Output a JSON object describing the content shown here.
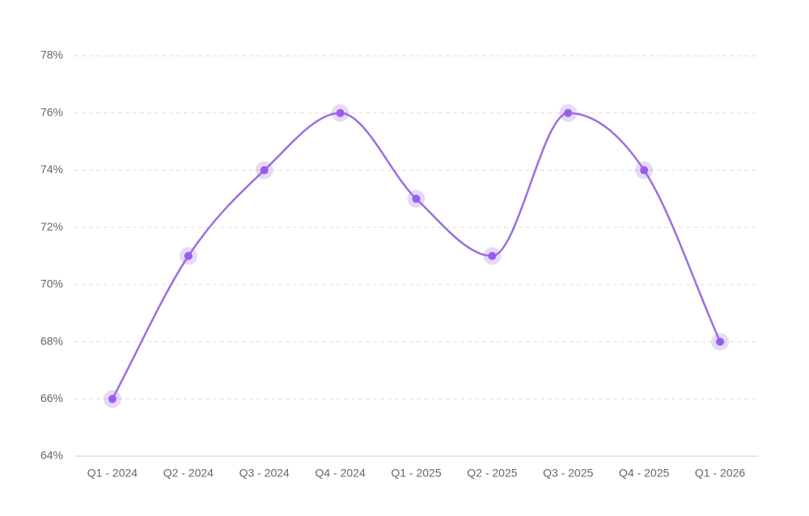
{
  "chart_data": {
    "type": "line",
    "categories": [
      "Q1 - 2024",
      "Q2 - 2024",
      "Q3 - 2024",
      "Q4 - 2024",
      "Q1 - 2025",
      "Q2 - 2025",
      "Q3 - 2025",
      "Q4 - 2025",
      "Q1 - 2026"
    ],
    "values": [
      66,
      71,
      74,
      76,
      73,
      71,
      76,
      74,
      68
    ],
    "color": "#9b6fdc",
    "ylim": [
      64,
      78
    ],
    "yticks": [
      {
        "value": 64,
        "label": "64%"
      },
      {
        "value": 66,
        "label": "66%"
      },
      {
        "value": 68,
        "label": "68%"
      },
      {
        "value": 70,
        "label": "70%"
      },
      {
        "value": 72,
        "label": "72%"
      },
      {
        "value": 74,
        "label": "74%"
      },
      {
        "value": 76,
        "label": "76%"
      },
      {
        "value": 78,
        "label": "78%"
      }
    ],
    "grid": true
  }
}
